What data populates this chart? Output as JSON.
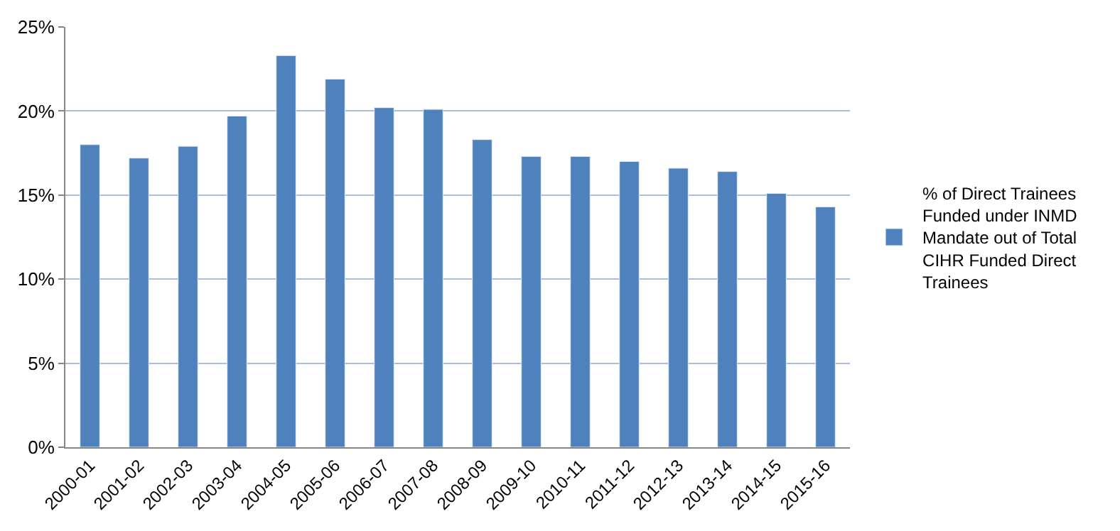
{
  "chart_data": {
    "type": "bar",
    "categories": [
      "2000-01",
      "2001-02",
      "2002-03",
      "2003-04",
      "2004-05",
      "2005-06",
      "2006-07",
      "2007-08",
      "2008-09",
      "2009-10",
      "2010-11",
      "2011-12",
      "2012-13",
      "2013-14",
      "2014-15",
      "2015-16"
    ],
    "series": [
      {
        "name": "% of Direct Trainees Funded under INMD Mandate out of Total CIHR Funded Direct Trainees",
        "color": "#4f81bd",
        "values": [
          18.0,
          17.2,
          17.9,
          19.7,
          23.3,
          21.9,
          20.2,
          20.1,
          18.3,
          17.3,
          17.3,
          17.0,
          16.6,
          16.4,
          15.1,
          14.3
        ]
      }
    ],
    "ylim": [
      0,
      25
    ],
    "yticks": [
      {
        "value": 0,
        "label": "0%"
      },
      {
        "value": 5,
        "label": "5%"
      },
      {
        "value": 10,
        "label": "10%"
      },
      {
        "value": 15,
        "label": "15%"
      },
      {
        "value": 20,
        "label": "20%"
      },
      {
        "value": 25,
        "label": "25%"
      }
    ],
    "grid": "y",
    "legend": "right"
  }
}
